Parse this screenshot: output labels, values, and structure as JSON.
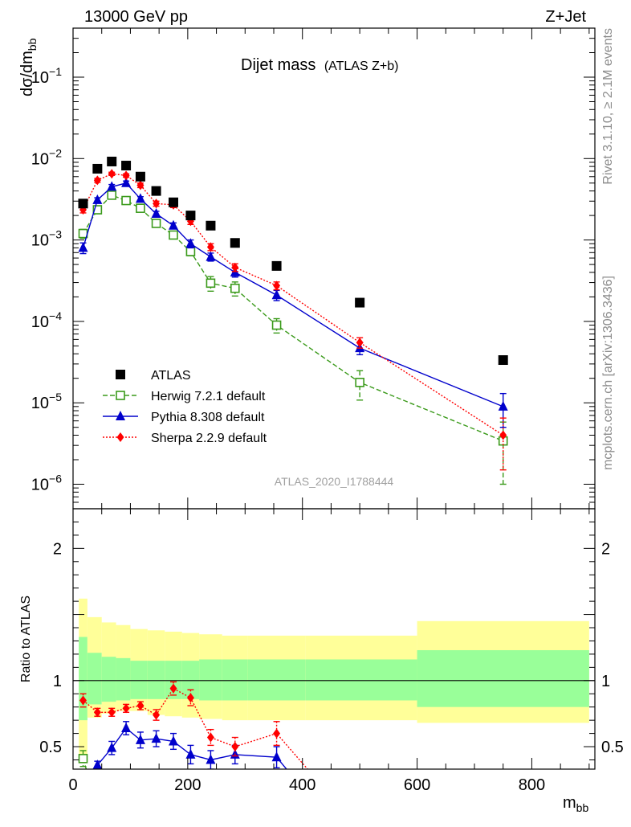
{
  "header": {
    "left": "13000 GeV pp",
    "right": "Z+Jet"
  },
  "side_notes": {
    "rivet": "Rivet 3.1.10, ≥ 2.1M events",
    "mcplots": "mcplots.cern.ch [arXiv:1306.3436]"
  },
  "colors": {
    "atlas": "#000000",
    "herwig": "#3a9a1a",
    "pythia": "#0000cc",
    "sherpa": "#ff0000",
    "band_outer": "#ffff99",
    "band_inner": "#99ff99"
  },
  "chart_data": [
    {
      "type": "scatter",
      "title": "Dijet mass",
      "subtitle": "(ATLAS Z+b)",
      "xlabel": "m",
      "xlabel_sub": "bb",
      "ylabel": "dσ/dm",
      "ylabel_sub": "bb",
      "yscale": "log",
      "xlim": [
        0,
        910
      ],
      "ylim": [
        5e-07,
        0.4
      ],
      "yticks": [
        {
          "value": 1e-06,
          "base": "10",
          "exp": "−6"
        },
        {
          "value": 1e-05,
          "base": "10",
          "exp": "−5"
        },
        {
          "value": 0.0001,
          "base": "10",
          "exp": "−4"
        },
        {
          "value": 0.001,
          "base": "10",
          "exp": "−3"
        },
        {
          "value": 0.01,
          "base": "10",
          "exp": "−2"
        },
        {
          "value": 0.1,
          "base": "10",
          "exp": "−1"
        }
      ],
      "watermark": "ATLAS_2020_I1788444",
      "legend_position": "bottom-left",
      "x": [
        17.5,
        42.5,
        67.5,
        92.5,
        117.5,
        145,
        175,
        205,
        240,
        282.5,
        355,
        500,
        750
      ],
      "series": [
        {
          "name": "ATLAS",
          "marker": "square",
          "values": [
            0.0028,
            0.0075,
            0.0092,
            0.0082,
            0.006,
            0.004,
            0.0029,
            0.002,
            0.0015,
            0.00092,
            0.00048,
            0.00017,
            3.35e-05
          ],
          "err": [
            0,
            0,
            0,
            0,
            0,
            0,
            0,
            0,
            0,
            0,
            0,
            0,
            0
          ]
        },
        {
          "name": "Herwig 7.2.1 default",
          "marker": "open-square",
          "values": [
            0.0012,
            0.00235,
            0.00355,
            0.00305,
            0.00245,
            0.0016,
            0.00115,
            0.00072,
            0.000295,
            0.000255,
            9e-05,
            1.78e-05,
            3.4e-06
          ],
          "err": [
            0.00015,
            0.0002,
            0.00025,
            0.0002,
            0.00015,
            0.00012,
            0.0001,
            8e-05,
            6e-05,
            5e-05,
            1.8e-05,
            7e-06,
            2.4e-06
          ]
        },
        {
          "name": "Pythia 8.308 default",
          "marker": "triangle",
          "values": [
            0.0008,
            0.0031,
            0.0045,
            0.005,
            0.0032,
            0.0021,
            0.0015,
            0.0009,
            0.00062,
            0.0004,
            0.00021,
            4.7e-05,
            9e-06
          ],
          "err": [
            0.00012,
            0.0002,
            0.0003,
            0.0003,
            0.0002,
            0.00015,
            0.00012,
            0.0001,
            7e-05,
            5e-05,
            3e-05,
            8e-06,
            4e-06
          ]
        },
        {
          "name": "Sherpa 2.2.9 default",
          "marker": "diamond",
          "values": [
            0.00235,
            0.0054,
            0.0065,
            0.0062,
            0.0047,
            0.0028,
            0.0027,
            0.0017,
            0.00082,
            0.00046,
            0.000275,
            5.5e-05,
            4e-06
          ],
          "err": [
            0.0002,
            0.0003,
            0.0003,
            0.0003,
            0.0003,
            0.0002,
            0.0002,
            0.00015,
            8e-05,
            5e-05,
            3e-05,
            8e-06,
            2.5e-06
          ]
        }
      ]
    },
    {
      "type": "scatter",
      "title": "",
      "ylabel": "Ratio to ATLAS",
      "xlabel": "m",
      "xlabel_sub": "bb",
      "xlim": [
        0,
        910
      ],
      "ylim": [
        0.33,
        2.3
      ],
      "xticks": [
        0,
        200,
        400,
        600,
        800
      ],
      "yticks": [
        0.5,
        1,
        2
      ],
      "reference_line": 1,
      "bands": {
        "edges": [
          10,
          25,
          50,
          75,
          100,
          130,
          160,
          190,
          220,
          260,
          305,
          405,
          600,
          900
        ],
        "outer_lo": [
          0.38,
          0.72,
          0.75,
          0.77,
          0.77,
          0.74,
          0.73,
          0.72,
          0.71,
          0.7,
          0.7,
          0.7,
          0.68
        ],
        "outer_hi": [
          1.62,
          1.48,
          1.44,
          1.42,
          1.39,
          1.38,
          1.37,
          1.36,
          1.35,
          1.34,
          1.34,
          1.34,
          1.45
        ],
        "inner_lo": [
          0.7,
          0.82,
          0.84,
          0.85,
          0.86,
          0.86,
          0.86,
          0.86,
          0.85,
          0.85,
          0.85,
          0.85,
          0.8
        ],
        "inner_hi": [
          1.33,
          1.21,
          1.18,
          1.17,
          1.15,
          1.15,
          1.15,
          1.15,
          1.16,
          1.16,
          1.16,
          1.16,
          1.23
        ]
      },
      "x": [
        17.5,
        42.5,
        67.5,
        92.5,
        117.5,
        145,
        175,
        205,
        240,
        282.5,
        355,
        500,
        750
      ],
      "series": [
        {
          "name": "Herwig 7.2.1 default",
          "marker": "open-square",
          "values": [
            0.41,
            null,
            null,
            null,
            null,
            null,
            null,
            null,
            null,
            null,
            null,
            null,
            null
          ],
          "err": [
            0.06,
            0,
            0,
            0,
            0,
            0,
            0,
            0,
            0,
            0,
            0,
            0,
            0
          ],
          "line_end": {
            "x": 25,
            "y": 0.3
          }
        },
        {
          "name": "Pythia 8.308 default",
          "marker": "triangle",
          "values": [
            null,
            0.36,
            0.49,
            0.64,
            0.55,
            0.56,
            0.54,
            0.44,
            0.4,
            0.44,
            0.42,
            null,
            null
          ],
          "err": [
            0,
            0.03,
            0.05,
            0.05,
            0.06,
            0.06,
            0.06,
            0.07,
            0.07,
            0.07,
            0.08,
            0,
            0
          ],
          "line_end": {
            "x": 378,
            "y": 0.3
          }
        },
        {
          "name": "Sherpa 2.2.9 default",
          "marker": "diamond",
          "values": [
            0.85,
            0.76,
            0.76,
            0.79,
            0.81,
            0.74,
            0.94,
            0.87,
            0.57,
            0.5,
            0.6,
            null,
            null
          ],
          "err": [
            0.05,
            0.03,
            0.03,
            0.03,
            0.03,
            0.04,
            0.05,
            0.06,
            0.06,
            0.07,
            0.09,
            0,
            0
          ],
          "line_end": {
            "x": 415,
            "y": 0.3
          }
        }
      ]
    }
  ]
}
